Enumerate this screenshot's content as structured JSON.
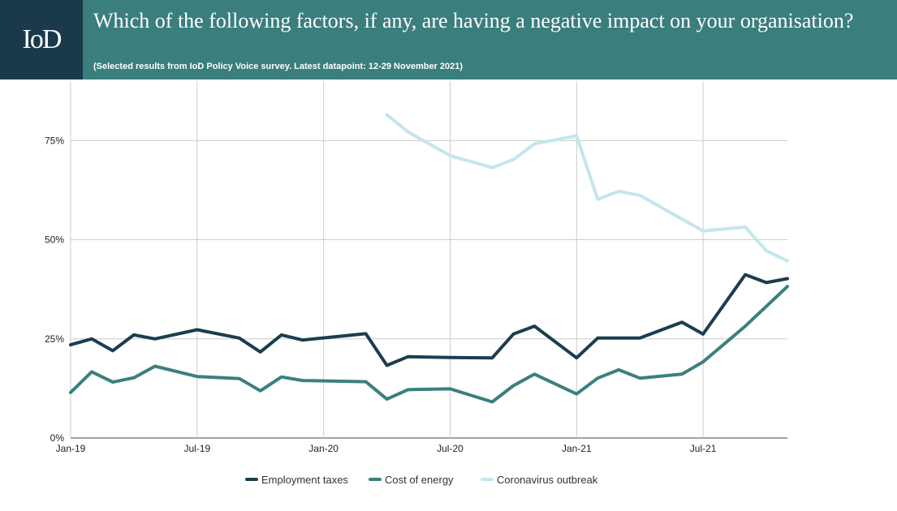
{
  "header": {
    "logo_text": "IoD",
    "title": "Which of the following factors, if any, are having a negative impact on your organisation?",
    "subtitle": "(Selected results from IoD Policy Voice survey. Latest datapoint: 12-29 November 2021)",
    "background_color": "#3a7e7d",
    "logo_background_color": "#1a3a4a"
  },
  "chart_data": {
    "type": "line",
    "title": "Which of the following factors, if any, are having a negative impact on your organisation?",
    "subtitle": "(Selected results from IoD Policy Voice survey. Latest datapoint: 12-29 November 2021)",
    "xlabel": "",
    "ylabel": "",
    "x_tick_labels": [
      "Jan-19",
      "Jul-19",
      "Jan-20",
      "Jul-20",
      "Jan-21",
      "Jul-21"
    ],
    "y_tick_labels": [
      "0%",
      "25%",
      "50%",
      "75%"
    ],
    "ylim": [
      0,
      90
    ],
    "grid": true,
    "legend_position": "bottom",
    "series": [
      {
        "name": "Employment taxes",
        "color": "#1b3d4f",
        "points": [
          [
            "2019-01",
            23.5
          ],
          [
            "2019-02",
            25
          ],
          [
            "2019-03",
            22
          ],
          [
            "2019-04",
            26
          ],
          [
            "2019-05",
            25
          ],
          [
            "2019-07",
            27.3
          ],
          [
            "2019-09",
            25.2
          ],
          [
            "2019-10",
            21.7
          ],
          [
            "2019-11",
            26
          ],
          [
            "2019-12",
            24.7
          ],
          [
            "2020-03",
            26.3
          ],
          [
            "2020-04",
            18.3
          ],
          [
            "2020-05",
            20.5
          ],
          [
            "2020-07",
            20.3
          ],
          [
            "2020-09",
            20.2
          ],
          [
            "2020-10",
            26.2
          ],
          [
            "2020-11",
            28.2
          ],
          [
            "2021-01",
            20.2
          ],
          [
            "2021-02",
            25.2
          ],
          [
            "2021-04",
            25.2
          ],
          [
            "2021-06",
            29.2
          ],
          [
            "2021-07",
            26.2
          ],
          [
            "2021-09",
            41.2
          ],
          [
            "2021-10",
            39.2
          ],
          [
            "2021-11",
            40.2
          ]
        ]
      },
      {
        "name": "Cost of energy",
        "color": "#3a807e",
        "points": [
          [
            "2019-01",
            11.5
          ],
          [
            "2019-02",
            16.7
          ],
          [
            "2019-03",
            14.1
          ],
          [
            "2019-04",
            15.2
          ],
          [
            "2019-05",
            18.1
          ],
          [
            "2019-07",
            15.5
          ],
          [
            "2019-09",
            15
          ],
          [
            "2019-10",
            11.9
          ],
          [
            "2019-11",
            15.4
          ],
          [
            "2019-12",
            14.5
          ],
          [
            "2020-03",
            14.2
          ],
          [
            "2020-04",
            9.8
          ],
          [
            "2020-05",
            12.2
          ],
          [
            "2020-07",
            12.4
          ],
          [
            "2020-09",
            9.1
          ],
          [
            "2020-10",
            13.2
          ],
          [
            "2020-11",
            16.1
          ],
          [
            "2021-01",
            11.1
          ],
          [
            "2021-02",
            15.1
          ],
          [
            "2021-03",
            17.2
          ],
          [
            "2021-04",
            15.1
          ],
          [
            "2021-06",
            16.1
          ],
          [
            "2021-07",
            19.2
          ],
          [
            "2021-09",
            28.2
          ],
          [
            "2021-11",
            38.2
          ]
        ]
      },
      {
        "name": "Coronavirus outbreak",
        "color": "#c5e5ed",
        "points": [
          [
            "2020-04",
            81.5
          ],
          [
            "2020-05",
            77.2
          ],
          [
            "2020-07",
            71.2
          ],
          [
            "2020-09",
            68.2
          ],
          [
            "2020-10",
            70.2
          ],
          [
            "2020-11",
            74.2
          ],
          [
            "2021-01",
            76.2
          ],
          [
            "2021-02",
            60.2
          ],
          [
            "2021-03",
            62.2
          ],
          [
            "2021-04",
            61.2
          ],
          [
            "2021-06",
            55.2
          ],
          [
            "2021-07",
            52.2
          ],
          [
            "2021-09",
            53.2
          ],
          [
            "2021-10",
            47.2
          ],
          [
            "2021-11",
            44.7
          ]
        ]
      }
    ]
  }
}
